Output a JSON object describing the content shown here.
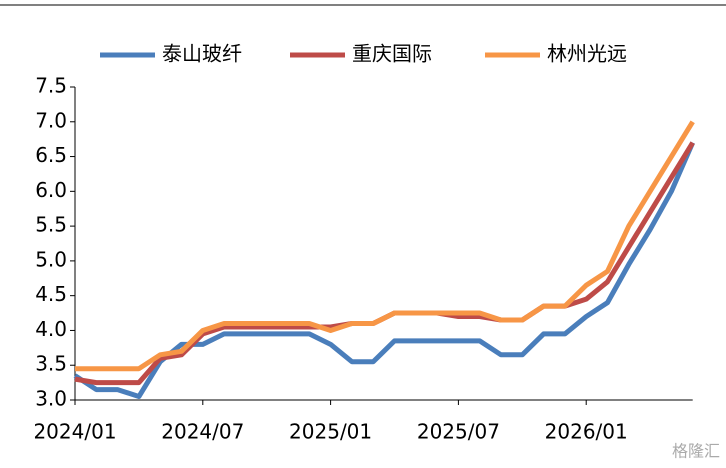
{
  "chart_data": {
    "type": "line",
    "categories": [
      "2024/01",
      null,
      null,
      null,
      null,
      null,
      "2024/07",
      null,
      null,
      null,
      null,
      null,
      "2025/01",
      null,
      null,
      null,
      null,
      null,
      "2025/07",
      null,
      null,
      null,
      null,
      null,
      "2026/01",
      null,
      null,
      null,
      null,
      null
    ],
    "series": [
      {
        "name": "泰山玻纤",
        "color": "#4a7ebb",
        "values": [
          3.35,
          3.15,
          3.15,
          3.05,
          3.55,
          3.8,
          3.8,
          3.95,
          3.95,
          3.95,
          3.95,
          3.95,
          3.8,
          3.55,
          3.55,
          3.85,
          3.85,
          3.85,
          3.85,
          3.85,
          3.65,
          3.65,
          3.95,
          3.95,
          4.2,
          4.4,
          4.95,
          5.45,
          6.0,
          6.7
        ]
      },
      {
        "name": "重庆国际",
        "color": "#be4b48",
        "values": [
          3.3,
          3.25,
          3.25,
          3.25,
          3.6,
          3.65,
          3.95,
          4.05,
          4.05,
          4.05,
          4.05,
          4.05,
          4.05,
          4.1,
          4.1,
          4.25,
          4.25,
          4.25,
          4.2,
          4.2,
          4.15,
          4.15,
          4.35,
          4.35,
          4.45,
          4.7,
          5.2,
          5.7,
          6.2,
          6.7
        ]
      },
      {
        "name": "林州光远",
        "color": "#f79646",
        "values": [
          3.45,
          3.45,
          3.45,
          3.45,
          3.65,
          3.7,
          4.0,
          4.1,
          4.1,
          4.1,
          4.1,
          4.1,
          4.0,
          4.1,
          4.1,
          4.25,
          4.25,
          4.25,
          4.25,
          4.25,
          4.15,
          4.15,
          4.35,
          4.35,
          4.65,
          4.85,
          5.5,
          6.0,
          6.5,
          7.0
        ]
      }
    ],
    "ylim": [
      3.0,
      7.5
    ],
    "yticks": [
      {
        "value": 3.0,
        "label": "3.0"
      },
      3.5,
      {
        "value": 4.0,
        "label": "4.0"
      },
      4.5,
      {
        "value": 5.0,
        "label": "5.0"
      },
      5.5,
      {
        "value": 6.0,
        "label": "6.0"
      },
      6.5,
      {
        "value": 7.0,
        "label": "7.0"
      },
      7.5
    ],
    "grid": false,
    "legend": "top",
    "watermark": "格隆汇"
  }
}
